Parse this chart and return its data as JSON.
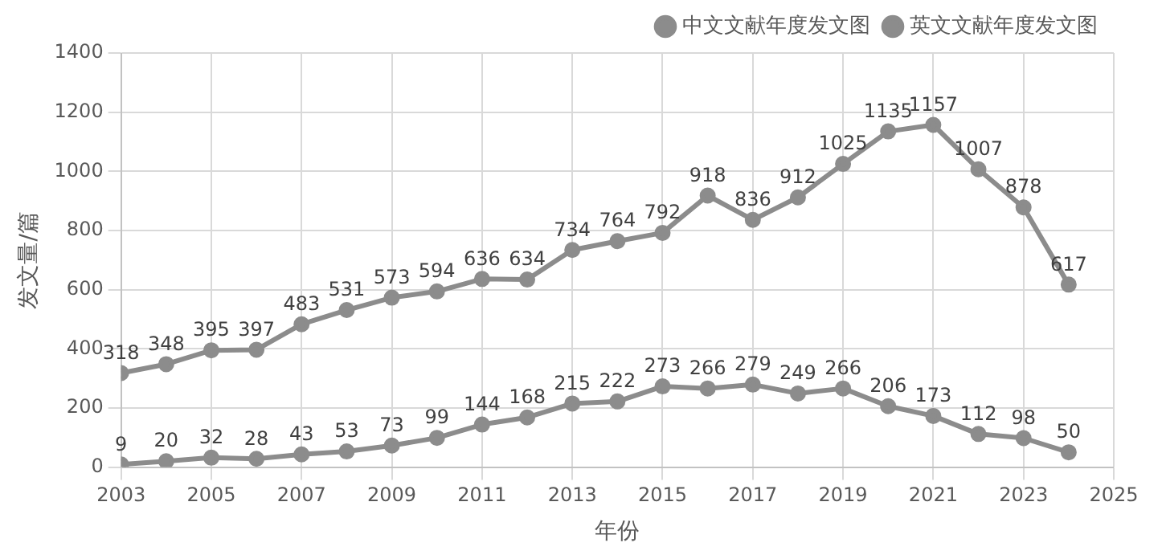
{
  "chart_data": {
    "type": "line",
    "xlabel": "年份",
    "ylabel": "发文量/篇",
    "x": [
      2003,
      2004,
      2005,
      2006,
      2007,
      2008,
      2009,
      2010,
      2011,
      2012,
      2013,
      2014,
      2015,
      2016,
      2017,
      2018,
      2019,
      2020,
      2021,
      2022,
      2023,
      2024
    ],
    "series": [
      {
        "name": "中文文献年度发文图",
        "color": "#8c8c8c",
        "values": [
          9,
          20,
          32,
          28,
          43,
          53,
          73,
          99,
          144,
          168,
          215,
          222,
          273,
          266,
          279,
          249,
          266,
          206,
          173,
          112,
          98,
          50
        ]
      },
      {
        "name": "英文文献年度发文图",
        "color": "#8c8c8c",
        "values": [
          318,
          348,
          395,
          397,
          483,
          531,
          573,
          594,
          636,
          634,
          734,
          764,
          792,
          918,
          836,
          912,
          1025,
          1135,
          1157,
          1007,
          878,
          617
        ]
      }
    ],
    "xlim": [
      2003,
      2025
    ],
    "xticks": [
      2003,
      2005,
      2007,
      2009,
      2011,
      2013,
      2015,
      2017,
      2019,
      2021,
      2023,
      2025
    ],
    "ylim": [
      0,
      1400
    ],
    "yticks": [
      0,
      200,
      400,
      600,
      800,
      1000,
      1200,
      1400
    ],
    "grid": true,
    "legend": "top right",
    "marker": "circle",
    "line_style": "solid",
    "data_labels": true
  }
}
